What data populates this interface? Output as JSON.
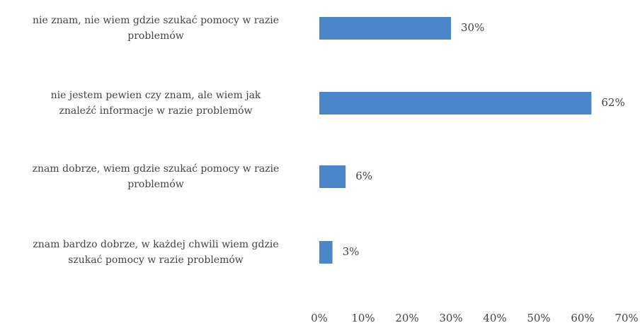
{
  "chart_data": {
    "type": "barh",
    "categories": [
      "nie znam, nie wiem gdzie szukać pomocy w razie\nproblemów",
      "nie jestem pewien czy znam, ale wiem jak\nznaleźć informacje w razie problemów",
      "znam dobrze, wiem gdzie szukać pomocy w razie\nproblemów",
      "znam bardzo dobrze, w każdej chwili wiem gdzie\nszukać pomocy w razie problemów"
    ],
    "values": [
      30,
      62,
      6,
      3
    ],
    "value_labels": [
      "30%",
      "62%",
      "6%",
      "3%"
    ],
    "color": "#4a86c8",
    "xlim": [
      0,
      70
    ],
    "xticks": [
      {
        "value": 0,
        "label": "0%"
      },
      {
        "value": 10,
        "label": "10%"
      },
      {
        "value": 20,
        "label": "20%"
      },
      {
        "value": 30,
        "label": "30%"
      },
      {
        "value": 40,
        "label": "40%"
      },
      {
        "value": 50,
        "label": "50%"
      },
      {
        "value": 60,
        "label": "60%"
      },
      {
        "value": 70,
        "label": "70%"
      }
    ],
    "grid": false
  }
}
